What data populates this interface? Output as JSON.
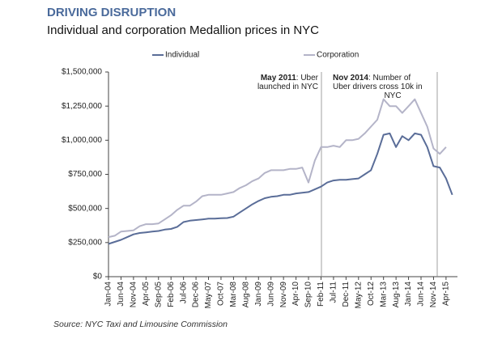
{
  "chart_data": {
    "type": "line",
    "header": "DRIVING DISRUPTION",
    "title": "Individual and corporation Medallion prices in NYC",
    "source": "Source: NYC Taxi and Limousine Commission",
    "categories": [
      "Jan-04",
      null,
      "Jun-04",
      null,
      "Nov-04",
      null,
      "Apr-05",
      null,
      "Sep-05",
      null,
      "Feb-06",
      null,
      "Jul-06",
      null,
      "Dec-06",
      null,
      "May-07",
      null,
      "Oct-07",
      null,
      "Mar-08",
      null,
      "Aug-08",
      null,
      "Jan-09",
      null,
      "Jun-09",
      null,
      "Nov-09",
      null,
      "Apr-10",
      null,
      "Sep-10",
      null,
      "Feb-11",
      null,
      "Jul-11",
      null,
      "Dec-11",
      null,
      "May-12",
      null,
      "Oct-12",
      null,
      "Mar-13",
      null,
      "Aug-13",
      null,
      "Jan-14",
      null,
      "Jun-14",
      null,
      "Nov-14",
      null,
      "Apr-15",
      null
    ],
    "series": [
      {
        "name": "Individual",
        "color": "#5a6d98",
        "values": [
          240000,
          255000,
          270000,
          290000,
          310000,
          320000,
          325000,
          330000,
          335000,
          345000,
          350000,
          365000,
          400000,
          410000,
          415000,
          420000,
          425000,
          425000,
          428000,
          430000,
          440000,
          470000,
          500000,
          530000,
          555000,
          575000,
          585000,
          590000,
          600000,
          600000,
          610000,
          615000,
          620000,
          640000,
          660000,
          690000,
          705000,
          710000,
          710000,
          715000,
          720000,
          750000,
          780000,
          900000,
          1040000,
          1050000,
          950000,
          1030000,
          1000000,
          1050000,
          1040000,
          950000,
          810000,
          800000,
          720000,
          600000
        ]
      },
      {
        "name": "Corporation",
        "color": "#b4b4c8",
        "values": [
          290000,
          300000,
          330000,
          335000,
          340000,
          370000,
          385000,
          385000,
          390000,
          420000,
          450000,
          490000,
          520000,
          520000,
          550000,
          590000,
          600000,
          600000,
          600000,
          610000,
          620000,
          650000,
          670000,
          700000,
          720000,
          760000,
          780000,
          780000,
          780000,
          790000,
          790000,
          800000,
          690000,
          850000,
          950000,
          950000,
          960000,
          950000,
          1000000,
          1000000,
          1010000,
          1050000,
          1100000,
          1150000,
          1300000,
          1250000,
          1250000,
          1200000,
          1250000,
          1300000,
          1200000,
          1100000,
          940000,
          900000,
          950000,
          null
        ]
      }
    ],
    "ylim": [
      0,
      1500000
    ],
    "yticks": [
      {
        "value": 0,
        "label": "$0"
      },
      {
        "value": 250000,
        "label": "$250,000"
      },
      {
        "value": 500000,
        "label": "$500,000"
      },
      {
        "value": 750000,
        "label": "$750,000"
      },
      {
        "value": 1000000,
        "label": "$1,000,000"
      },
      {
        "value": 1250000,
        "label": "$1,250,000"
      },
      {
        "value": 1500000,
        "label": "$1,500,000"
      }
    ],
    "grid": false,
    "annotations": [
      {
        "label": "May 2011",
        "text": [
          ": Uber",
          "launched in NYC"
        ]
      },
      {
        "label": "Nov 2014",
        "text": [
          ": Number of",
          "Uber drivers cross 10k in",
          "NYC"
        ]
      }
    ]
  }
}
